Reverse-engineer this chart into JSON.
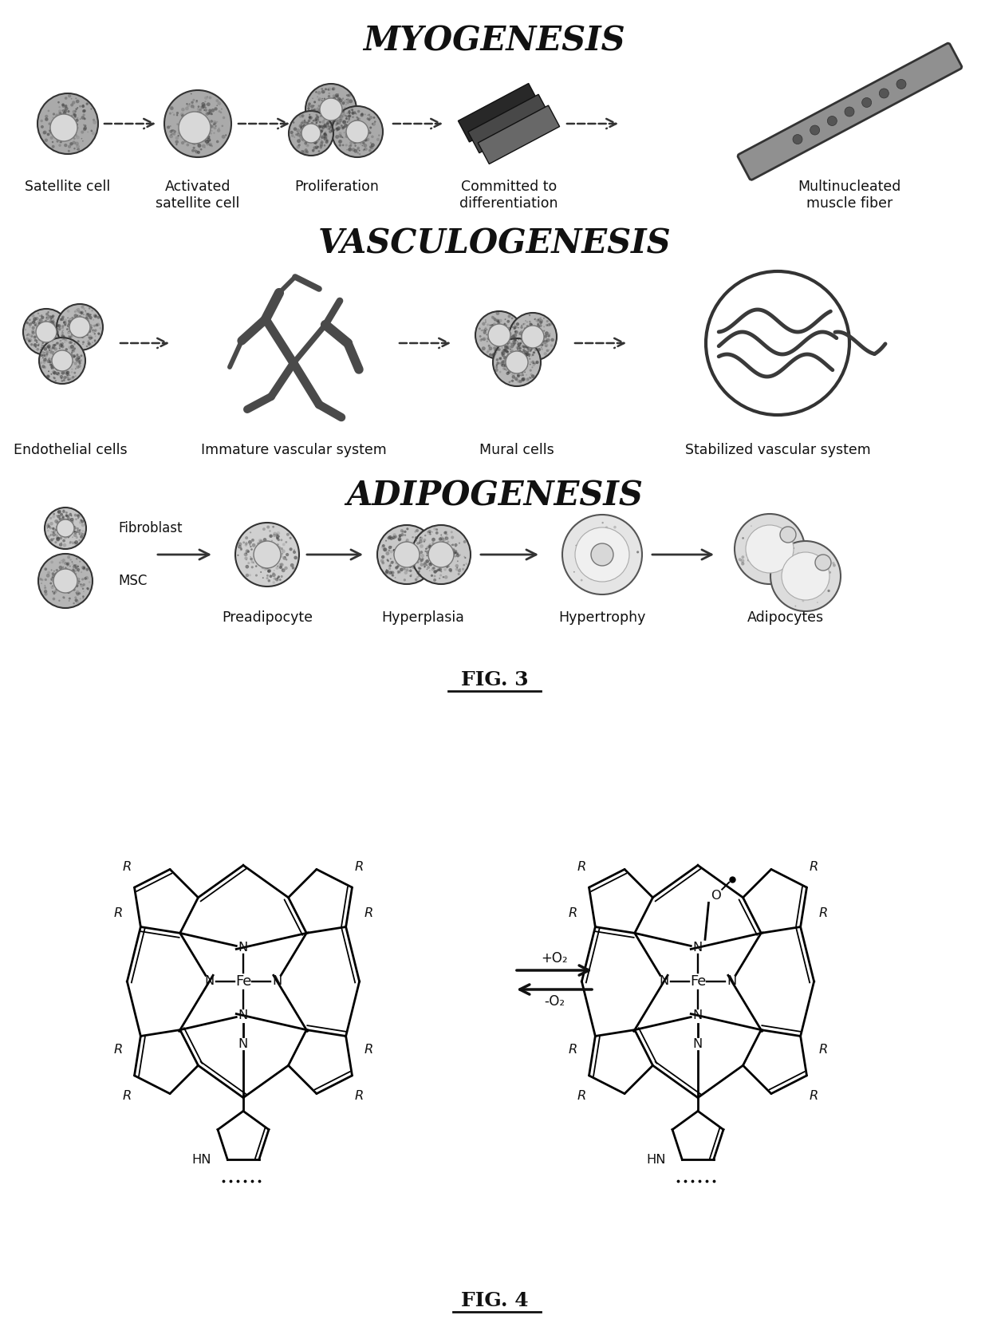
{
  "fig3_title": "MYOGENESIS",
  "fig3_title2": "VASCULOGENESIS",
  "fig3_title3": "ADIPOGENESIS",
  "myogenesis_labels": [
    "Satellite cell",
    "Activated\nsatellite cell",
    "Proliferation",
    "Committed to\ndifferentiation",
    "Multinucleated\nmuscle fiber"
  ],
  "vasculogenesis_labels": [
    "Endothelial cells",
    "Immature vascular system",
    "Mural cells",
    "Stabilized vascular system"
  ],
  "adipogenesis_labels": [
    "Fibroblast",
    "MSC",
    "Preadipocyte",
    "Hyperplasia",
    "Hypertrophy",
    "Adipocytes"
  ],
  "fig3_caption": "FIG. 3",
  "fig4_caption": "FIG. 4",
  "fig4_arrow_label_top": "+O₂",
  "fig4_arrow_label_bottom": "-O₂",
  "bg_color": "#ffffff",
  "text_color": "#000000"
}
